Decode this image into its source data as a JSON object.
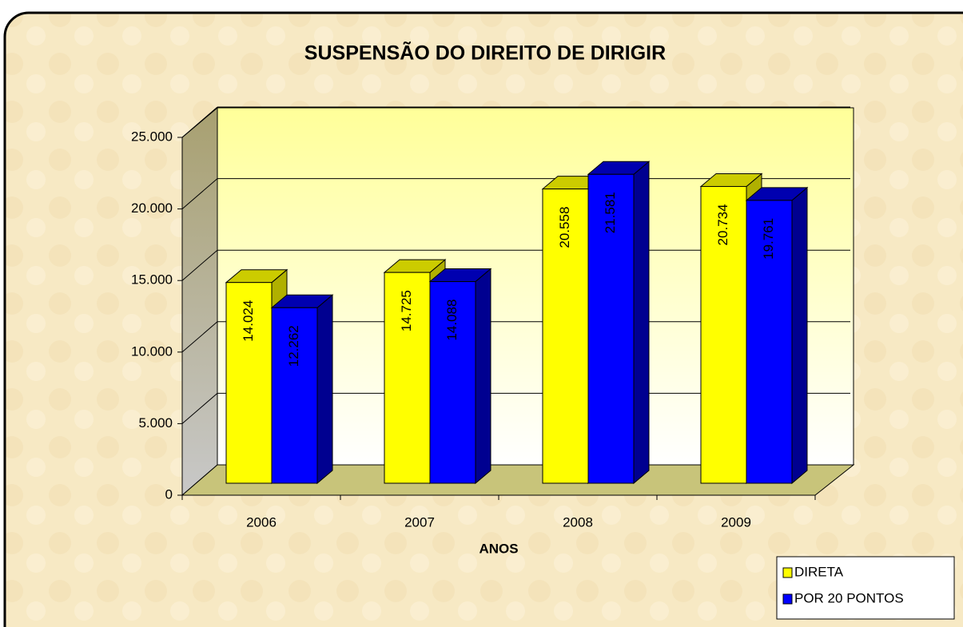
{
  "chart_data": {
    "type": "bar3d",
    "title": "SUSPENSÃO DO DIREITO DE DIRIGIR",
    "x_label": "ANOS",
    "categories": [
      "2006",
      "2007",
      "2008",
      "2009"
    ],
    "series": [
      {
        "name": "DIRETA",
        "color": "#ffff00",
        "values": [
          14024,
          14725,
          20558,
          20734
        ],
        "value_labels": [
          "14.024",
          "14.725",
          "20.558",
          "20.734"
        ]
      },
      {
        "name": "POR 20 PONTOS",
        "color": "#0000ff",
        "values": [
          12262,
          14088,
          21581,
          19761
        ],
        "value_labels": [
          "12.262",
          "14.088",
          "21.581",
          "19.761"
        ]
      }
    ],
    "ylim": [
      0,
      25000
    ],
    "yticks": [
      0,
      {
        "value": 5000,
        "label": "5.000"
      },
      {
        "value": 10000,
        "label": "10.000"
      },
      {
        "value": 15000,
        "label": "15.000"
      },
      {
        "value": 20000,
        "label": "20.000"
      },
      {
        "value": 25000,
        "label": "25.000"
      }
    ],
    "grid": true,
    "legend": "bottom-right"
  }
}
